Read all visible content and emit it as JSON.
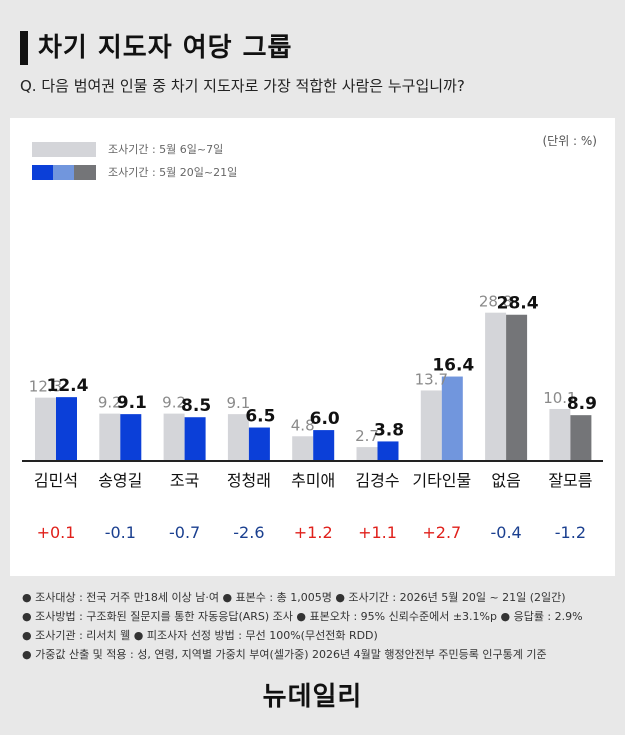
{
  "header": {
    "title": "차기 지도자 여당 그룹",
    "question": "Q. 다음 범여권 인물 중 차기 지도자로 가장 적합한 사람은 누구입니까?"
  },
  "legend": {
    "previous": "조사기간 : 5월 6일~7일",
    "current": "조사기간 : 5월 20일~21일"
  },
  "unit": "(단위 : %)",
  "colors": {
    "previous": "#d4d5d9",
    "current_named": "#0b3fd8",
    "current_other": "#7196dd",
    "current_none": "#747578",
    "up": "#e0201b",
    "down": "#1a3f8f"
  },
  "chart_data": {
    "type": "bar",
    "categories": [
      "김민석",
      "송영길",
      "조국",
      "정청래",
      "추미애",
      "김경수",
      "기타인물",
      "없음",
      "잘모름"
    ],
    "series": [
      {
        "name": "조사기간 : 5월 6일~7일",
        "values": [
          12.3,
          9.2,
          9.2,
          9.1,
          4.8,
          2.7,
          13.7,
          28.8,
          10.1
        ]
      },
      {
        "name": "조사기간 : 5월 20일~21일",
        "values": [
          12.4,
          9.1,
          8.5,
          6.5,
          6.0,
          3.8,
          16.4,
          28.4,
          8.9
        ]
      }
    ],
    "changes": [
      "+0.1",
      "-0.1",
      "-0.7",
      "-2.6",
      "+1.2",
      "+1.1",
      "+2.7",
      "-0.4",
      "-1.2"
    ],
    "ylim": [
      0,
      30
    ]
  },
  "footnotes": [
    "● 조사대상 : 전국 거주 만18세 이상 남·여  ● 표본수 : 총 1,005명  ● 조사기간 : 2026년 5월 20일 ~ 21일 (2일간)",
    "● 조사방법 : 구조화된 질문지를 통한 자동응답(ARS) 조사  ● 표본오차 : 95% 신뢰수준에서 ±3.1%p  ● 응답률 : 2.9%",
    "● 조사기관 : 리서치 웰  ● 피조사자 선정 방법 : 무선 100%(무선전화 RDD)",
    "● 가중값 산출 및 적용 : 성, 연령, 지역별 가중치 부여(셀가중) 2026년 4월말 행정안전부 주민등록 인구통계 기준"
  ],
  "logo": "뉴데일리"
}
